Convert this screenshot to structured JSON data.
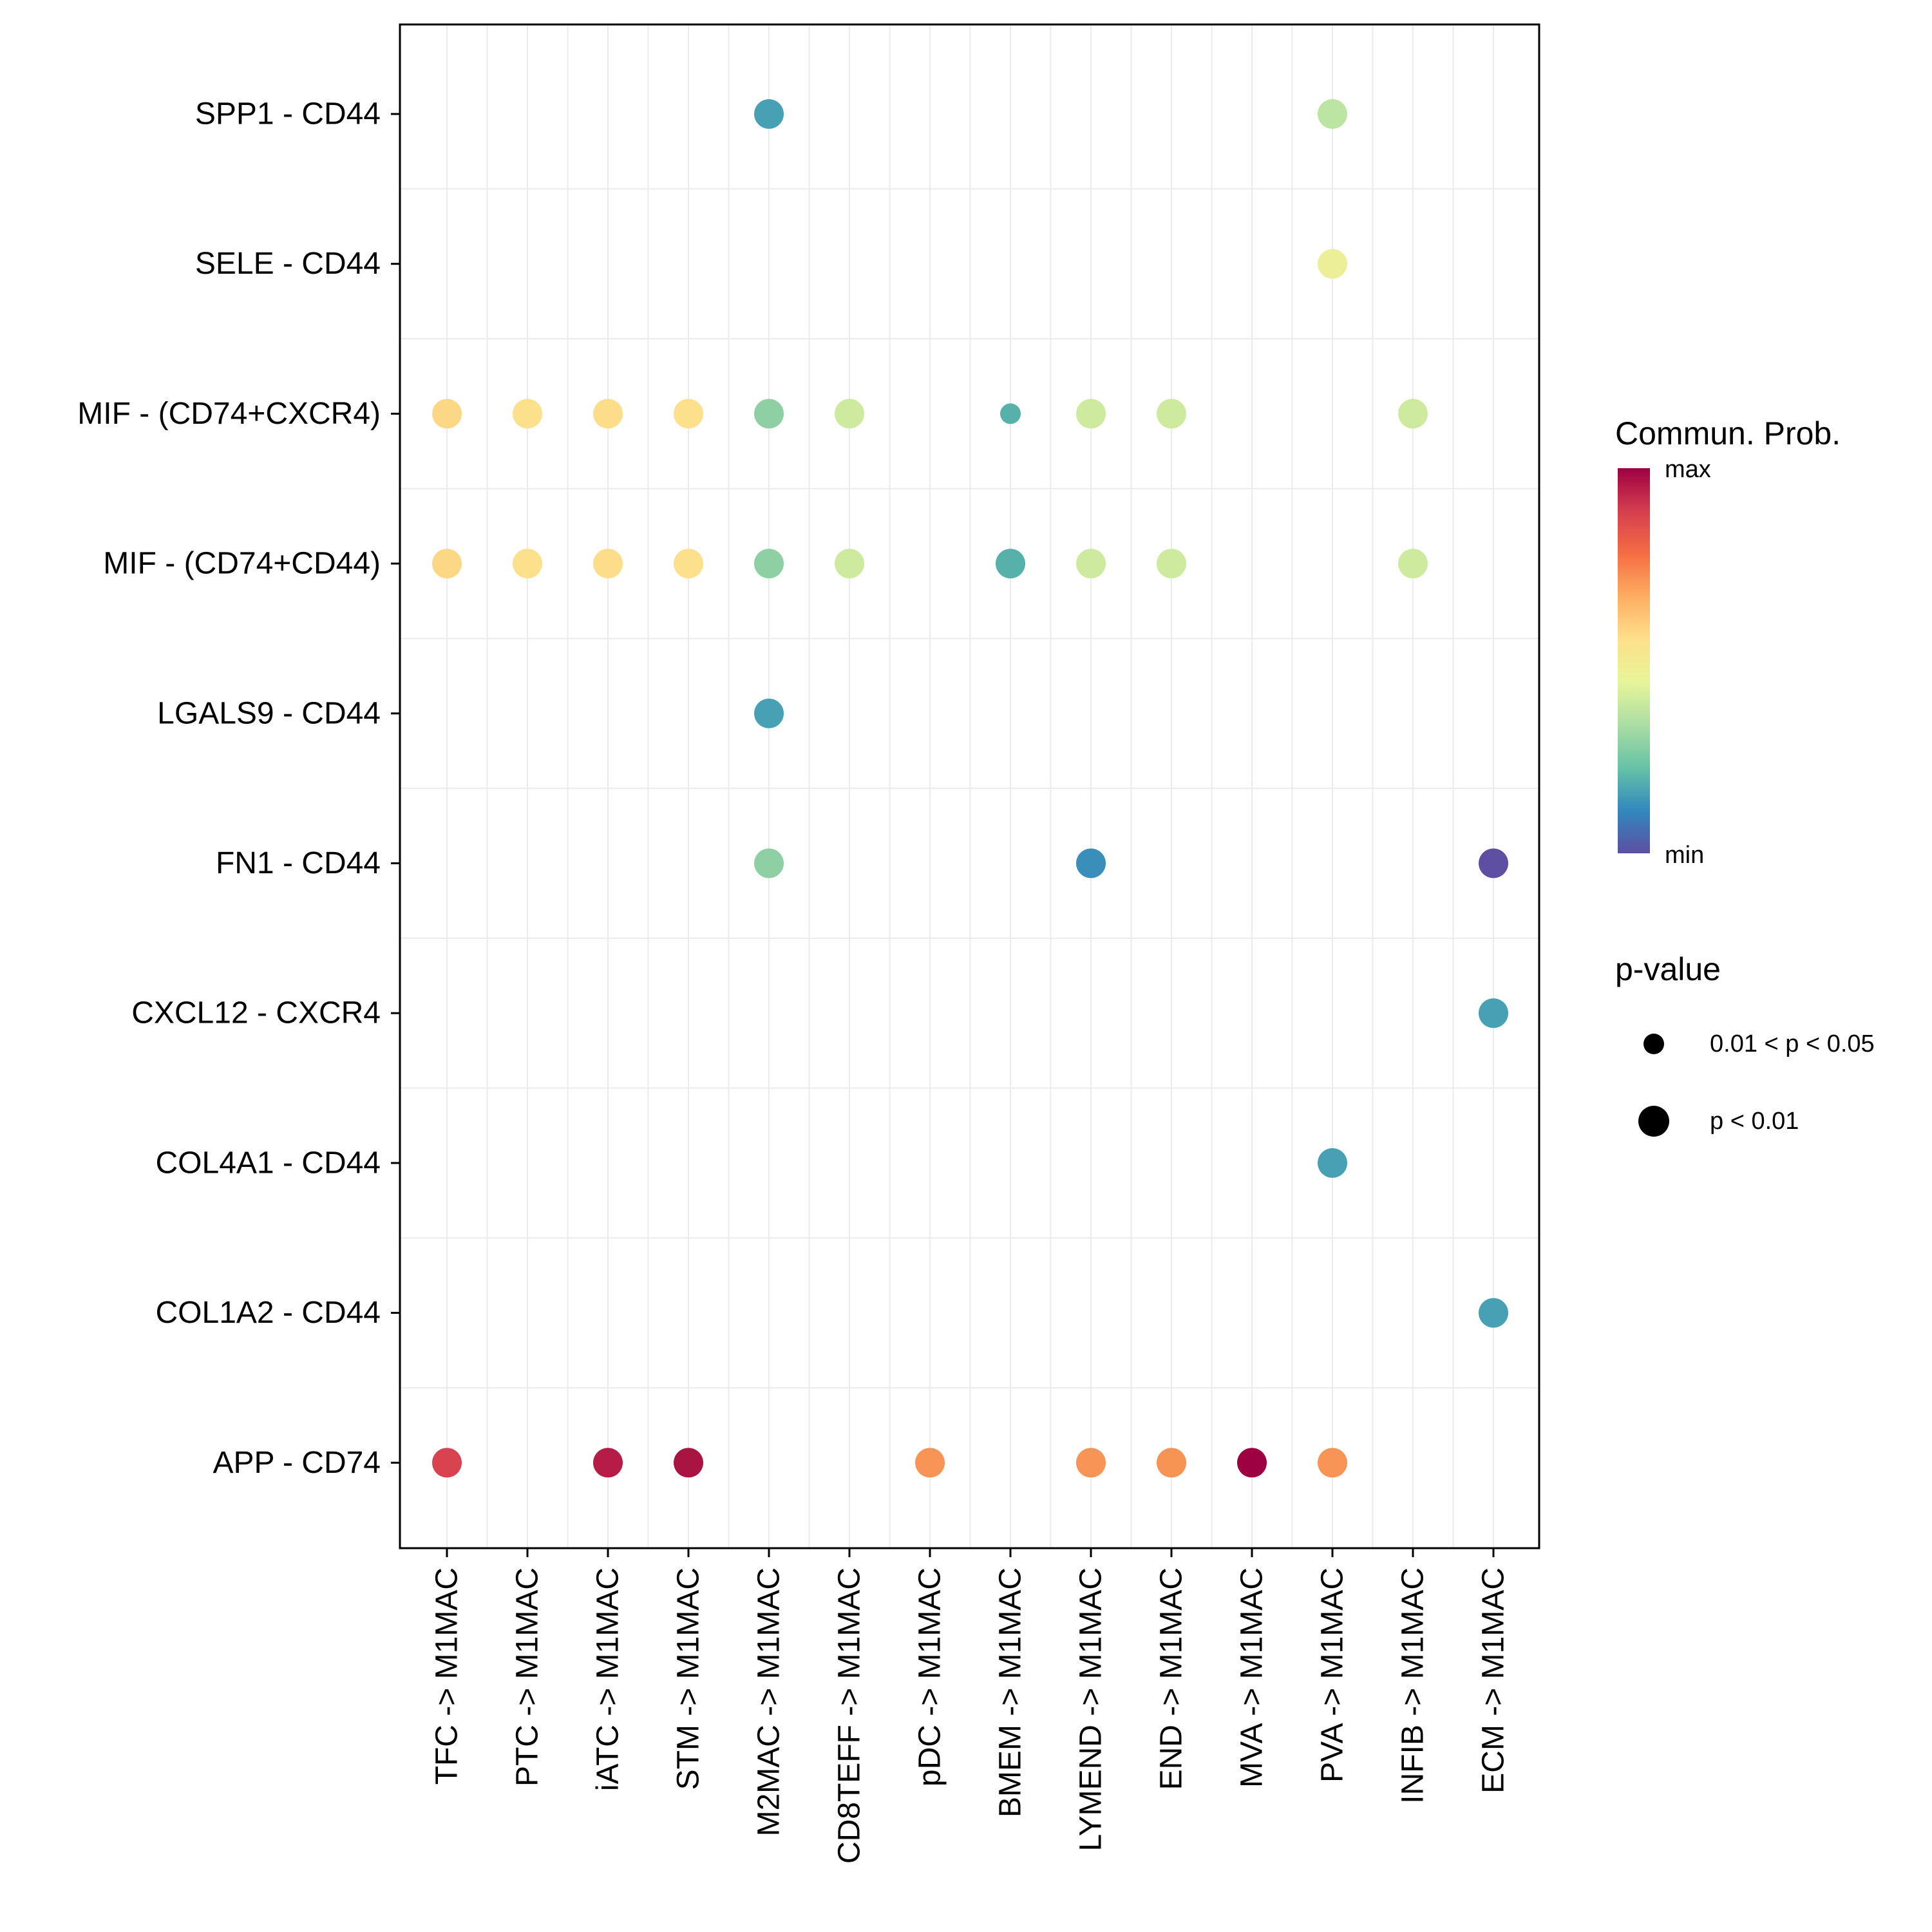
{
  "chart_data": {
    "type": "scatter",
    "subtype": "dot-matrix",
    "title": "",
    "xlabel": "",
    "ylabel": "",
    "grid": true,
    "x_categories": [
      "TFC -> M1MAC",
      "PTC -> M1MAC",
      "iATC -> M1MAC",
      "STM -> M1MAC",
      "M2MAC -> M1MAC",
      "CD8TEFF -> M1MAC",
      "pDC -> M1MAC",
      "BMEM -> M1MAC",
      "LYMEND -> M1MAC",
      "END -> M1MAC",
      "MVA -> M1MAC",
      "PVA -> M1MAC",
      "INFIB -> M1MAC",
      "ECM -> M1MAC"
    ],
    "y_categories": [
      "SPP1 - CD44",
      "SELE - CD44",
      "MIF - (CD74+CXCR4)",
      "MIF - (CD74+CD44)",
      "LGALS9 - CD44",
      "FN1 - CD44",
      "CXCL12 - CXCR4",
      "COL4A1 - CD44",
      "COL1A2 - CD44",
      "APP - CD74"
    ],
    "color_scale": {
      "title": "Commun. Prob.",
      "min_label": "min",
      "max_label": "max",
      "palette": [
        "#5E4FA2",
        "#3288BD",
        "#66C2A5",
        "#ABDDA4",
        "#E6F598",
        "#FEE08B",
        "#FDAE61",
        "#F46D43",
        "#D53E4F",
        "#9E0142"
      ]
    },
    "size_legend": {
      "title": "p-value",
      "entries": [
        {
          "label": "0.01 < p < 0.05",
          "size": "small"
        },
        {
          "label": "p < 0.01",
          "size": "large"
        }
      ]
    },
    "points": [
      {
        "x": "M2MAC -> M1MAC",
        "y": "SPP1 - CD44",
        "color": "#48A0B4",
        "size": "large"
      },
      {
        "x": "PVA -> M1MAC",
        "y": "SPP1 - CD44",
        "color": "#BCE4A2",
        "size": "large"
      },
      {
        "x": "PVA -> M1MAC",
        "y": "SELE - CD44",
        "color": "#ECEF98",
        "size": "large"
      },
      {
        "x": "TFC -> M1MAC",
        "y": "MIF - (CD74+CXCR4)",
        "color": "#FCD886",
        "size": "large"
      },
      {
        "x": "PTC -> M1MAC",
        "y": "MIF - (CD74+CXCR4)",
        "color": "#FCE08C",
        "size": "large"
      },
      {
        "x": "iATC -> M1MAC",
        "y": "MIF - (CD74+CXCR4)",
        "color": "#FCDE8A",
        "size": "large"
      },
      {
        "x": "STM -> M1MAC",
        "y": "MIF - (CD74+CXCR4)",
        "color": "#FCE08C",
        "size": "large"
      },
      {
        "x": "M2MAC -> M1MAC",
        "y": "MIF - (CD74+CXCR4)",
        "color": "#8ED0A4",
        "size": "large"
      },
      {
        "x": "CD8TEFF -> M1MAC",
        "y": "MIF - (CD74+CXCR4)",
        "color": "#CDEA9E",
        "size": "large"
      },
      {
        "x": "BMEM -> M1MAC",
        "y": "MIF - (CD74+CXCR4)",
        "color": "#57B0AA",
        "size": "small"
      },
      {
        "x": "LYMEND -> M1MAC",
        "y": "MIF - (CD74+CXCR4)",
        "color": "#CDEA9E",
        "size": "large"
      },
      {
        "x": "END -> M1MAC",
        "y": "MIF - (CD74+CXCR4)",
        "color": "#CDEA9E",
        "size": "large"
      },
      {
        "x": "INFIB -> M1MAC",
        "y": "MIF - (CD74+CXCR4)",
        "color": "#CDEA9E",
        "size": "large"
      },
      {
        "x": "TFC -> M1MAC",
        "y": "MIF - (CD74+CD44)",
        "color": "#FCD886",
        "size": "large"
      },
      {
        "x": "PTC -> M1MAC",
        "y": "MIF - (CD74+CD44)",
        "color": "#FCE08C",
        "size": "large"
      },
      {
        "x": "iATC -> M1MAC",
        "y": "MIF - (CD74+CD44)",
        "color": "#FCDE8A",
        "size": "large"
      },
      {
        "x": "STM -> M1MAC",
        "y": "MIF - (CD74+CD44)",
        "color": "#FCE08C",
        "size": "large"
      },
      {
        "x": "M2MAC -> M1MAC",
        "y": "MIF - (CD74+CD44)",
        "color": "#8ED0A4",
        "size": "large"
      },
      {
        "x": "CD8TEFF -> M1MAC",
        "y": "MIF - (CD74+CD44)",
        "color": "#CDEA9E",
        "size": "large"
      },
      {
        "x": "BMEM -> M1MAC",
        "y": "MIF - (CD74+CD44)",
        "color": "#57B0AA",
        "size": "large"
      },
      {
        "x": "LYMEND -> M1MAC",
        "y": "MIF - (CD74+CD44)",
        "color": "#CDEA9E",
        "size": "large"
      },
      {
        "x": "END -> M1MAC",
        "y": "MIF - (CD74+CD44)",
        "color": "#CDEA9E",
        "size": "large"
      },
      {
        "x": "INFIB -> M1MAC",
        "y": "MIF - (CD74+CD44)",
        "color": "#CDEA9E",
        "size": "large"
      },
      {
        "x": "M2MAC -> M1MAC",
        "y": "LGALS9 - CD44",
        "color": "#47A0B3",
        "size": "large"
      },
      {
        "x": "M2MAC -> M1MAC",
        "y": "FN1 - CD44",
        "color": "#8ED0A4",
        "size": "large"
      },
      {
        "x": "LYMEND -> M1MAC",
        "y": "FN1 - CD44",
        "color": "#3A8EBA",
        "size": "large"
      },
      {
        "x": "ECM -> M1MAC",
        "y": "FN1 - CD44",
        "color": "#5E4FA2",
        "size": "large"
      },
      {
        "x": "ECM -> M1MAC",
        "y": "CXCL12 - CXCR4",
        "color": "#47A0B3",
        "size": "large"
      },
      {
        "x": "PVA -> M1MAC",
        "y": "COL4A1 - CD44",
        "color": "#48A0B4",
        "size": "large"
      },
      {
        "x": "ECM -> M1MAC",
        "y": "COL1A2 - CD44",
        "color": "#48A0B4",
        "size": "large"
      },
      {
        "x": "TFC -> M1MAC",
        "y": "APP - CD74",
        "color": "#D8434F",
        "size": "large"
      },
      {
        "x": "iATC -> M1MAC",
        "y": "APP - CD74",
        "color": "#B61C45",
        "size": "large"
      },
      {
        "x": "STM -> M1MAC",
        "y": "APP - CD74",
        "color": "#A91442",
        "size": "large"
      },
      {
        "x": "pDC -> M1MAC",
        "y": "APP - CD74",
        "color": "#F89455",
        "size": "large"
      },
      {
        "x": "LYMEND -> M1MAC",
        "y": "APP - CD74",
        "color": "#F89455",
        "size": "large"
      },
      {
        "x": "END -> M1MAC",
        "y": "APP - CD74",
        "color": "#F79353",
        "size": "large"
      },
      {
        "x": "MVA -> M1MAC",
        "y": "APP - CD74",
        "color": "#9E0142",
        "size": "large"
      },
      {
        "x": "PVA -> M1MAC",
        "y": "APP - CD74",
        "color": "#F89455",
        "size": "large"
      }
    ]
  }
}
